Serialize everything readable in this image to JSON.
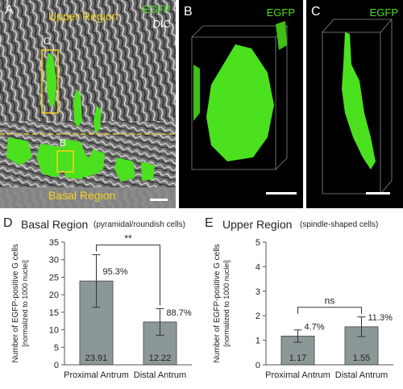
{
  "panel_a": {
    "letter": "A",
    "channel1": "EGFP",
    "channel2": "DIC",
    "upper_region": "Upper Region",
    "basal_region": "Basal Region",
    "inset_c": "C",
    "inset_b": "B",
    "colors": {
      "egfp": "#4be11e",
      "label": "#f5d31c",
      "dashed": "#e7c52a"
    }
  },
  "panel_b": {
    "letter": "B",
    "channel": "EGFP"
  },
  "panel_c": {
    "letter": "C",
    "channel": "EGFP"
  },
  "panel_d": {
    "letter": "D",
    "title": "Basal Region",
    "subtitle": "(pyramidal/roundish cells)",
    "significance": "**"
  },
  "panel_e": {
    "letter": "E",
    "title": "Upper Region",
    "subtitle": "(spindle-shaped cells)",
    "significance": "ns"
  },
  "chart_data": [
    {
      "type": "bar",
      "panel": "D",
      "title": "Basal Region",
      "subtitle": "(pyramidal/roundish cells)",
      "categories": [
        "Proximal Antrum",
        "Distal Antrum"
      ],
      "values": [
        23.91,
        12.22
      ],
      "value_labels": [
        "23.91",
        "12.22"
      ],
      "errors": [
        7.5,
        3.8
      ],
      "percent_labels": [
        "95.3%",
        "88.7%"
      ],
      "ylabel_line1": "Number of EGFP-positive G cells",
      "ylabel_line2": "[normalized to 1000 nuclei]",
      "ylim": [
        0,
        35
      ],
      "yticks": [
        0,
        5,
        10,
        15,
        20,
        25,
        30,
        35
      ],
      "significance": "**",
      "bar_color": "#8c9897"
    },
    {
      "type": "bar",
      "panel": "E",
      "title": "Upper Region",
      "subtitle": "(spindle-shaped cells)",
      "categories": [
        "Proximal Antrum",
        "Distal Antrum"
      ],
      "values": [
        1.17,
        1.55
      ],
      "value_labels": [
        "1.17",
        "1.55"
      ],
      "errors": [
        0.25,
        0.4
      ],
      "percent_labels": [
        "4.7%",
        "11.3%"
      ],
      "ylabel_line1": "Number of EGFP-positive G cells",
      "ylabel_line2": "[normalized to 1000 nuclei]",
      "ylim": [
        0,
        5
      ],
      "yticks": [
        0,
        1,
        2,
        3,
        4,
        5
      ],
      "significance": "ns",
      "bar_color": "#8c9897"
    }
  ]
}
